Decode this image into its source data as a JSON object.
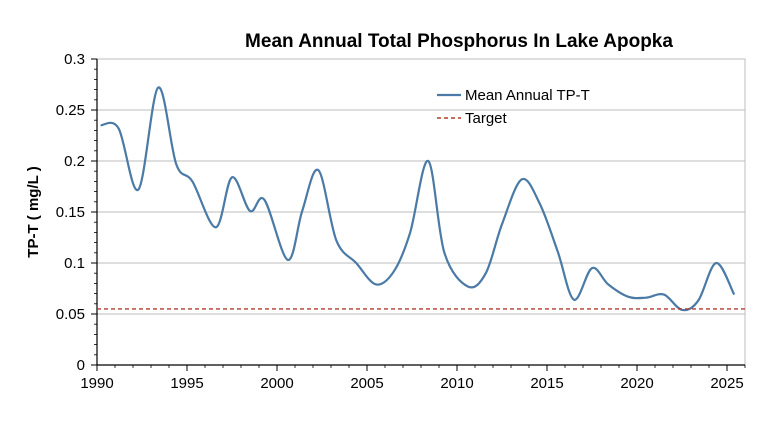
{
  "chart_data": {
    "type": "line",
    "title": "Mean Annual Total Phosphorus In Lake Apopka",
    "xlabel": "",
    "ylabel": "TP-T ( mg/L )",
    "xlim": [
      1990,
      2026
    ],
    "ylim": [
      0,
      0.3
    ],
    "x_ticks": [
      1990,
      1995,
      2000,
      2005,
      2010,
      2015,
      2020,
      2025
    ],
    "y_ticks": [
      0,
      0.05,
      0.1,
      0.15,
      0.2,
      0.25,
      0.3
    ],
    "grid": "horizontal",
    "legend_position": "top-right",
    "series": [
      {
        "name": "Mean Annual TP-T",
        "color": "#4a7aa5",
        "style": "smooth-solid",
        "x": [
          1990.2,
          1991.2,
          1992.3,
          1993.4,
          1994.4,
          1995.3,
          1996.6,
          1997.5,
          1998.5,
          1999.3,
          2000.6,
          2001.4,
          2002.3,
          2003.3,
          2004.4,
          2005.5,
          2006.5,
          2007.4,
          2008.4,
          2009.3,
          2010.6,
          2011.6,
          2012.5,
          2013.6,
          2014.6,
          2015.6,
          2016.5,
          2017.5,
          2018.4,
          2019.5,
          2020.5,
          2021.5,
          2022.5,
          2023.4,
          2024.4,
          2025.4
        ],
        "values": [
          0.235,
          0.232,
          0.172,
          0.272,
          0.197,
          0.18,
          0.135,
          0.184,
          0.151,
          0.162,
          0.103,
          0.151,
          0.191,
          0.122,
          0.1,
          0.079,
          0.092,
          0.13,
          0.2,
          0.11,
          0.077,
          0.09,
          0.138,
          0.182,
          0.158,
          0.111,
          0.064,
          0.095,
          0.079,
          0.067,
          0.066,
          0.069,
          0.054,
          0.063,
          0.1,
          0.069
        ]
      },
      {
        "name": "Target",
        "color": "#b03a2e",
        "style": "dashed",
        "x": [
          1990,
          2026
        ],
        "values": [
          0.055,
          0.055
        ]
      }
    ]
  }
}
